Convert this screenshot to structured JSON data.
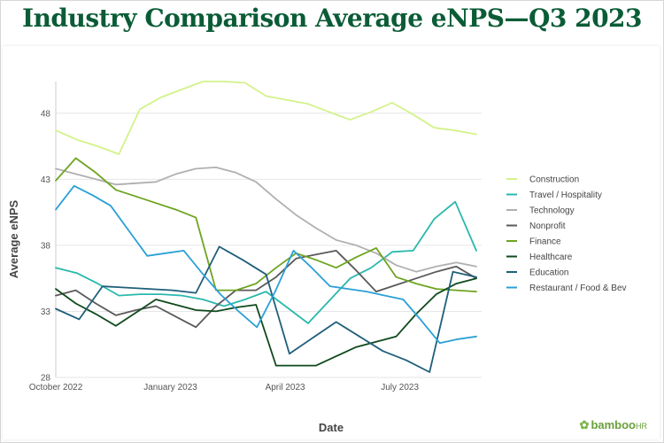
{
  "chart_data": {
    "type": "line",
    "title": "Industry Comparison Average eNPS—Q3 2023",
    "xlabel": "Date",
    "ylabel": "Average eNPS",
    "ylim": [
      28,
      50.4
    ],
    "yticks": [
      28,
      33,
      38,
      43,
      48
    ],
    "xticks": [
      {
        "label": "October 2022",
        "index": 0
      },
      {
        "label": "January 2023",
        "index": 3
      },
      {
        "label": "April 2023",
        "index": 6
      },
      {
        "label": "July 2023",
        "index": 9
      }
    ],
    "x_points_per_month": 2,
    "grid": "horizontal",
    "legend_position": "right",
    "series": [
      {
        "name": "Construction",
        "color": "#d4f28a",
        "values": [
          46.7,
          46.0,
          45.5,
          44.9,
          48.3,
          49.2,
          49.8,
          50.4,
          50.4,
          50.3,
          49.3,
          49.0,
          48.7,
          48.1,
          47.5,
          48.1,
          48.8,
          47.9,
          46.9,
          46.7,
          46.4
        ]
      },
      {
        "name": "Travel / Hospitality",
        "color": "#2ab8ac",
        "values": [
          36.3,
          35.9,
          35.1,
          34.2,
          34.3,
          34.3,
          34.2,
          33.9,
          33.4,
          33.9,
          34.5,
          33.3,
          32.1,
          33.8,
          35.5,
          36.3,
          37.5,
          37.6,
          40.0,
          41.3,
          37.6
        ]
      },
      {
        "name": "Technology",
        "color": "#b0b0b0",
        "values": [
          43.8,
          43.4,
          43.0,
          42.6,
          42.7,
          42.8,
          43.4,
          43.8,
          43.9,
          43.5,
          42.8,
          41.5,
          40.3,
          39.3,
          38.4,
          38.0,
          37.4,
          36.5,
          36.0,
          36.4,
          36.7,
          36.4
        ]
      },
      {
        "name": "Nonprofit",
        "color": "#5a5a5a",
        "values": [
          34.2,
          34.6,
          33.6,
          32.7,
          33.1,
          33.4,
          32.6,
          31.8,
          33.4,
          34.6,
          34.6,
          35.6,
          37.0,
          37.3,
          37.6,
          36.1,
          34.5,
          35.0,
          35.5,
          36.0,
          36.4,
          35.5
        ]
      },
      {
        "name": "Finance",
        "color": "#6ea420",
        "values": [
          42.9,
          44.6,
          43.5,
          42.2,
          41.7,
          41.2,
          40.7,
          40.1,
          34.6,
          34.6,
          35.1,
          36.3,
          37.4,
          36.9,
          36.3,
          37.1,
          37.8,
          35.6,
          35.1,
          34.7,
          34.6,
          34.5
        ]
      },
      {
        "name": "Healthcare",
        "color": "#0f4a1c",
        "values": [
          34.7,
          33.6,
          32.8,
          31.9,
          32.9,
          33.9,
          33.5,
          33.1,
          33.0,
          33.3,
          33.5,
          28.9,
          28.9,
          28.9,
          29.6,
          30.3,
          30.7,
          31.1,
          32.8,
          34.3,
          35.1,
          35.5
        ]
      },
      {
        "name": "Education",
        "color": "#1f5f7a",
        "values": [
          33.2,
          32.4,
          34.9,
          34.8,
          34.7,
          34.6,
          34.4,
          37.9,
          36.9,
          35.8,
          29.8,
          31.0,
          32.2,
          31.1,
          30.0,
          29.3,
          28.4,
          36.0,
          35.6
        ]
      },
      {
        "name": "Restaurant / Food & Bev",
        "color": "#2ba0d6",
        "values": [
          40.7,
          42.5,
          41.8,
          41.0,
          39.1,
          37.2,
          37.4,
          37.6,
          35.9,
          34.3,
          33.0,
          31.8,
          34.5,
          37.6,
          36.3,
          34.9,
          34.7,
          34.5,
          34.2,
          33.9,
          32.3,
          30.6,
          30.9,
          31.1
        ]
      }
    ]
  },
  "brand": {
    "name": "bamboo",
    "suffix": "HR"
  }
}
